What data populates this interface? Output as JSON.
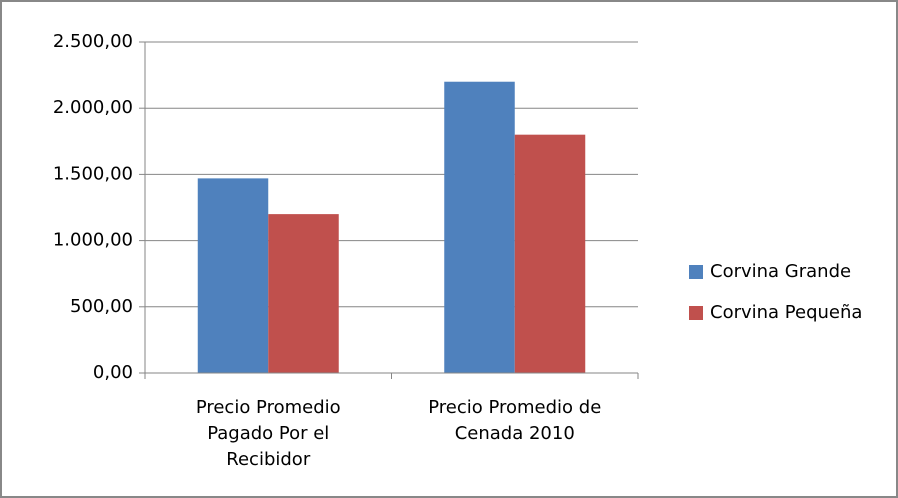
{
  "chart_data": {
    "type": "bar",
    "categories": [
      "Precio Promedio Pagado Por el Recibidor",
      "Precio Promedio de Cenada 2010"
    ],
    "series": [
      {
        "name": "Corvina Grande",
        "color": "#4f81bd",
        "values": [
          1470,
          2200
        ]
      },
      {
        "name": "Corvina Pequeña",
        "color": "#c0504d",
        "values": [
          1200,
          1800
        ]
      }
    ],
    "ylim": [
      0,
      2500
    ],
    "yticks": [
      {
        "value": 0,
        "label": "0,00"
      },
      {
        "value": 500,
        "label": "500,00"
      },
      {
        "value": 1000,
        "label": "1.000,00"
      },
      {
        "value": 1500,
        "label": "1.500,00"
      },
      {
        "value": 2000,
        "label": "2.000,00"
      },
      {
        "value": 2500,
        "label": "2.500,00"
      }
    ],
    "grid": true,
    "legend": "right"
  }
}
